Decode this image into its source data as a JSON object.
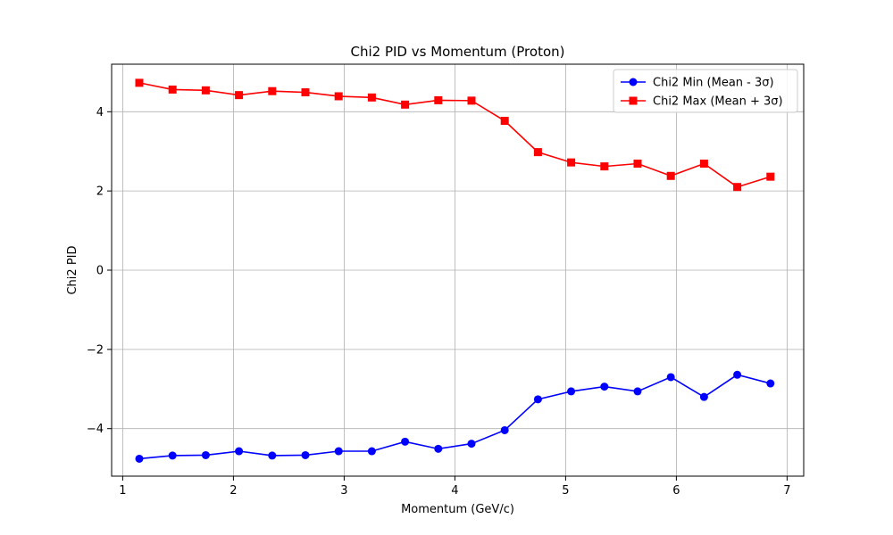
{
  "chart_data": {
    "type": "line",
    "title": "Chi2 PID vs Momentum (Proton)",
    "xlabel": "Momentum (GeV/c)",
    "ylabel": "Chi2 PID",
    "xlim": [
      0.9,
      7.15
    ],
    "ylim": [
      -5.2,
      5.2
    ],
    "xticks": [
      1,
      2,
      3,
      4,
      5,
      6,
      7
    ],
    "yticks": [
      -4,
      -2,
      0,
      2,
      4
    ],
    "xtick_labels": [
      "1",
      "2",
      "3",
      "4",
      "5",
      "6",
      "7"
    ],
    "ytick_labels": [
      "−4",
      "−2",
      "0",
      "2",
      "4"
    ],
    "grid": true,
    "legend_position": "top-right",
    "x": [
      1.15,
      1.45,
      1.75,
      2.05,
      2.35,
      2.65,
      2.95,
      3.25,
      3.55,
      3.85,
      4.15,
      4.45,
      4.75,
      5.05,
      5.35,
      5.65,
      5.95,
      6.25,
      6.55,
      6.85
    ],
    "series": [
      {
        "name": "Chi2 Min (Mean - 3σ)",
        "color": "#0000ff",
        "marker": "circle",
        "values": [
          -4.76,
          -4.68,
          -4.67,
          -4.57,
          -4.68,
          -4.67,
          -4.57,
          -4.57,
          -4.33,
          -4.51,
          -4.38,
          -4.04,
          -3.26,
          -3.06,
          -2.94,
          -3.06,
          -2.7,
          -3.2,
          -2.64,
          -2.86
        ]
      },
      {
        "name": "Chi2 Max (Mean + 3σ)",
        "color": "#ff0000",
        "marker": "square",
        "values": [
          4.73,
          4.56,
          4.54,
          4.42,
          4.52,
          4.49,
          4.39,
          4.36,
          4.18,
          4.29,
          4.28,
          3.77,
          2.98,
          2.72,
          2.62,
          2.69,
          2.38,
          2.69,
          2.1,
          2.36
        ]
      }
    ]
  }
}
